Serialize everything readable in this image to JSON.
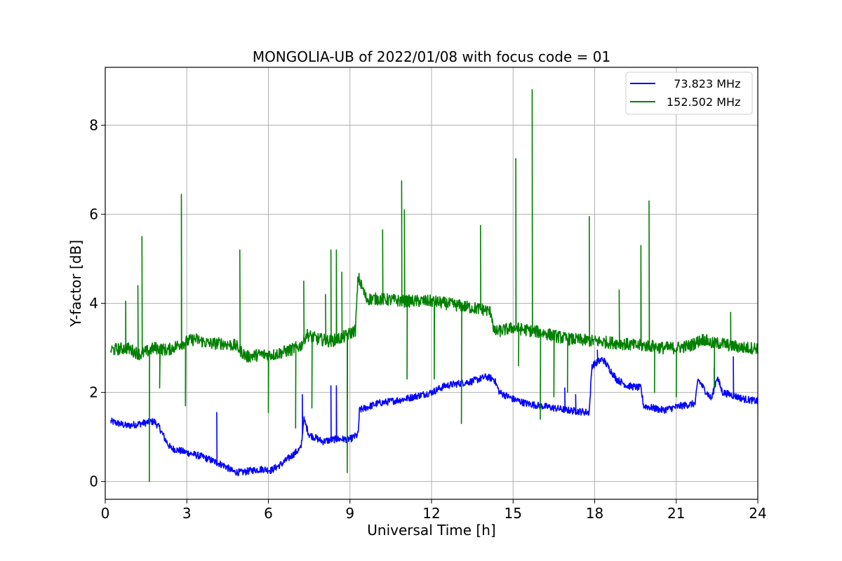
{
  "chart_data": {
    "type": "line",
    "title": "MONGOLIA-UB of 2022/01/08 with focus code = 01",
    "xlabel": "Universal Time [h]",
    "ylabel": "Y-factor [dB]",
    "xlim": [
      0,
      24
    ],
    "ylim": [
      -0.4,
      9.3
    ],
    "xticks": [
      0,
      3,
      6,
      9,
      12,
      15,
      18,
      21,
      24
    ],
    "yticks": [
      0,
      2,
      4,
      6,
      8
    ],
    "grid": true,
    "legend_position": "top-right",
    "series": [
      {
        "name": "  73.823 MHz",
        "color": "#0000ff",
        "noise": 0.08,
        "points": [
          [
            0.2,
            1.35
          ],
          [
            0.8,
            1.25
          ],
          [
            1.3,
            1.3
          ],
          [
            1.8,
            1.35
          ],
          [
            2.0,
            1.2
          ],
          [
            2.2,
            0.95
          ],
          [
            2.4,
            0.75
          ],
          [
            3.0,
            0.65
          ],
          [
            3.6,
            0.55
          ],
          [
            4.0,
            0.45
          ],
          [
            4.4,
            0.35
          ],
          [
            4.7,
            0.22
          ],
          [
            5.0,
            0.2
          ],
          [
            5.4,
            0.25
          ],
          [
            5.8,
            0.28
          ],
          [
            6.1,
            0.25
          ],
          [
            6.5,
            0.4
          ],
          [
            6.9,
            0.6
          ],
          [
            7.2,
            0.75
          ],
          [
            7.3,
            1.4
          ],
          [
            7.5,
            1.05
          ],
          [
            8.0,
            0.9
          ],
          [
            8.5,
            0.95
          ],
          [
            9.0,
            0.95
          ],
          [
            9.3,
            1.05
          ],
          [
            9.35,
            1.6
          ],
          [
            10.0,
            1.75
          ],
          [
            11.0,
            1.85
          ],
          [
            12.0,
            2.0
          ],
          [
            12.5,
            2.15
          ],
          [
            13.0,
            2.2
          ],
          [
            13.5,
            2.25
          ],
          [
            14.0,
            2.35
          ],
          [
            14.3,
            2.3
          ],
          [
            14.5,
            2.0
          ],
          [
            15.0,
            1.85
          ],
          [
            15.5,
            1.75
          ],
          [
            16.0,
            1.7
          ],
          [
            17.0,
            1.6
          ],
          [
            17.8,
            1.55
          ],
          [
            17.9,
            2.6
          ],
          [
            18.3,
            2.75
          ],
          [
            18.8,
            2.3
          ],
          [
            19.2,
            2.15
          ],
          [
            19.7,
            2.1
          ],
          [
            19.8,
            1.7
          ],
          [
            20.5,
            1.6
          ],
          [
            21.2,
            1.7
          ],
          [
            21.7,
            1.75
          ],
          [
            21.8,
            2.3
          ],
          [
            22.0,
            2.1
          ],
          [
            22.3,
            1.85
          ],
          [
            22.5,
            2.35
          ],
          [
            22.7,
            2.0
          ],
          [
            23.0,
            1.95
          ],
          [
            23.5,
            1.85
          ],
          [
            24.0,
            1.8
          ]
        ],
        "spikes": [
          [
            4.1,
            1.55
          ],
          [
            7.25,
            1.95
          ],
          [
            8.3,
            2.15
          ],
          [
            8.5,
            2.15
          ],
          [
            9.0,
            1.0
          ],
          [
            16.9,
            2.1
          ],
          [
            17.3,
            1.95
          ],
          [
            18.1,
            2.95
          ],
          [
            22.4,
            2.55
          ],
          [
            23.1,
            2.8
          ]
        ]
      },
      {
        "name": "152.502 MHz",
        "color": "#008000",
        "noise": 0.14,
        "points": [
          [
            0.2,
            2.95
          ],
          [
            0.8,
            3.0
          ],
          [
            1.3,
            2.85
          ],
          [
            1.8,
            3.0
          ],
          [
            2.3,
            2.95
          ],
          [
            2.8,
            3.1
          ],
          [
            3.3,
            3.2
          ],
          [
            3.8,
            3.1
          ],
          [
            4.3,
            3.1
          ],
          [
            4.8,
            3.05
          ],
          [
            5.2,
            2.8
          ],
          [
            5.7,
            2.85
          ],
          [
            6.2,
            2.85
          ],
          [
            6.8,
            2.95
          ],
          [
            7.2,
            3.05
          ],
          [
            7.4,
            3.3
          ],
          [
            7.8,
            3.2
          ],
          [
            8.3,
            3.15
          ],
          [
            8.8,
            3.25
          ],
          [
            9.2,
            3.4
          ],
          [
            9.3,
            4.6
          ],
          [
            9.6,
            4.1
          ],
          [
            10.0,
            4.1
          ],
          [
            11.0,
            4.05
          ],
          [
            12.0,
            4.05
          ],
          [
            12.5,
            4.0
          ],
          [
            13.0,
            3.95
          ],
          [
            13.5,
            3.9
          ],
          [
            14.0,
            3.85
          ],
          [
            14.2,
            3.8
          ],
          [
            14.3,
            3.35
          ],
          [
            15.0,
            3.45
          ],
          [
            15.5,
            3.4
          ],
          [
            16.0,
            3.35
          ],
          [
            17.0,
            3.2
          ],
          [
            18.0,
            3.15
          ],
          [
            19.0,
            3.1
          ],
          [
            19.5,
            3.05
          ],
          [
            20.0,
            3.05
          ],
          [
            20.5,
            3.0
          ],
          [
            21.0,
            3.0
          ],
          [
            21.5,
            3.05
          ],
          [
            22.0,
            3.2
          ],
          [
            22.3,
            3.1
          ],
          [
            22.7,
            3.1
          ],
          [
            23.0,
            3.05
          ],
          [
            23.5,
            3.0
          ],
          [
            24.0,
            3.0
          ]
        ],
        "spikes": [
          [
            0.75,
            4.05
          ],
          [
            1.2,
            4.4
          ],
          [
            1.35,
            5.5
          ],
          [
            1.62,
            0.0
          ],
          [
            2.0,
            2.1
          ],
          [
            2.8,
            6.45
          ],
          [
            2.95,
            1.7
          ],
          [
            4.95,
            5.2
          ],
          [
            6.0,
            1.55
          ],
          [
            7.0,
            1.2
          ],
          [
            7.3,
            4.5
          ],
          [
            7.6,
            1.65
          ],
          [
            8.1,
            4.2
          ],
          [
            8.3,
            5.2
          ],
          [
            8.5,
            5.2
          ],
          [
            8.7,
            4.7
          ],
          [
            8.9,
            0.2
          ],
          [
            10.2,
            5.65
          ],
          [
            10.9,
            6.75
          ],
          [
            11.0,
            6.1
          ],
          [
            11.1,
            2.3
          ],
          [
            12.1,
            2.3
          ],
          [
            13.1,
            1.3
          ],
          [
            13.8,
            5.75
          ],
          [
            15.1,
            7.25
          ],
          [
            15.2,
            2.6
          ],
          [
            15.7,
            8.8
          ],
          [
            16.0,
            1.4
          ],
          [
            16.5,
            1.9
          ],
          [
            17.0,
            2.0
          ],
          [
            17.8,
            5.95
          ],
          [
            18.9,
            4.3
          ],
          [
            19.7,
            5.3
          ],
          [
            20.0,
            6.3
          ],
          [
            20.2,
            2.0
          ],
          [
            21.0,
            1.9
          ],
          [
            22.4,
            2.1
          ],
          [
            23.0,
            3.8
          ]
        ]
      }
    ]
  }
}
